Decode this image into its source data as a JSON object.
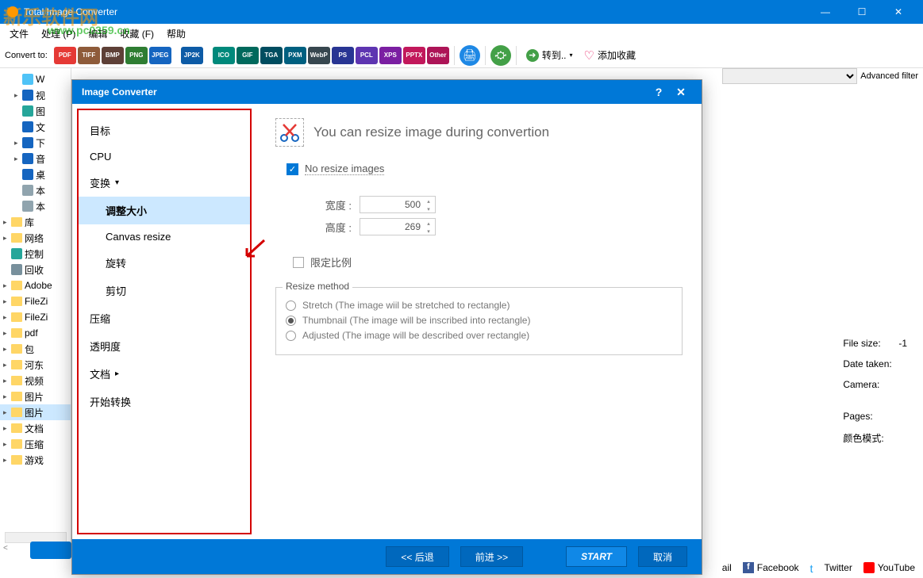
{
  "window": {
    "title": "Total Image Converter"
  },
  "menu": {
    "file": "文件",
    "process": "处理 (P)",
    "edit": "编辑",
    "favorites": "收藏 (F)",
    "help": "帮助"
  },
  "watermark": {
    "line1": "新乐软件网",
    "line2": "www.pc0359.cn"
  },
  "toolbar": {
    "convert_to": "Convert to:",
    "formats": [
      {
        "label": "PDF",
        "color": "#e53935"
      },
      {
        "label": "TIFF",
        "color": "#8e5b3a"
      },
      {
        "label": "BMP",
        "color": "#5e4037"
      },
      {
        "label": "PNG",
        "color": "#2e7d32"
      },
      {
        "label": "JPEG",
        "color": "#1565c0"
      },
      {
        "label": "JP2K",
        "color": "#0d5ba6"
      },
      {
        "label": "ICO",
        "color": "#00897b"
      },
      {
        "label": "GIF",
        "color": "#00695c"
      },
      {
        "label": "TGA",
        "color": "#004d60"
      },
      {
        "label": "PXM",
        "color": "#006080"
      },
      {
        "label": "WebP",
        "color": "#37474f"
      },
      {
        "label": "PS",
        "color": "#283593"
      },
      {
        "label": "PCL",
        "color": "#5e35b1"
      },
      {
        "label": "XPS",
        "color": "#7b1fa2"
      },
      {
        "label": "PPTX",
        "color": "#c2185b"
      },
      {
        "label": "Other",
        "color": "#ad1457"
      }
    ],
    "goto": "转到..",
    "add_fav": "添加收藏"
  },
  "filter": {
    "advanced": "Advanced filter"
  },
  "tree": [
    {
      "icon": "cloud",
      "label": "W",
      "indent": 1,
      "exp": ""
    },
    {
      "icon": "vid",
      "label": "视",
      "indent": 1,
      "exp": "▸"
    },
    {
      "icon": "img",
      "label": "图",
      "indent": 1,
      "exp": ""
    },
    {
      "icon": "doc",
      "label": "文",
      "indent": 1,
      "exp": ""
    },
    {
      "icon": "dl",
      "label": "下",
      "indent": 1,
      "exp": "▸"
    },
    {
      "icon": "mus",
      "label": "音",
      "indent": 1,
      "exp": "▸"
    },
    {
      "icon": "desk",
      "label": "桌",
      "indent": 1,
      "exp": ""
    },
    {
      "icon": "disk",
      "label": "本",
      "indent": 1,
      "exp": ""
    },
    {
      "icon": "disk",
      "label": "本",
      "indent": 1,
      "exp": ""
    },
    {
      "icon": "folder",
      "label": "库",
      "indent": 0,
      "exp": "▸"
    },
    {
      "icon": "folder",
      "label": "网络",
      "indent": 0,
      "exp": "▸"
    },
    {
      "icon": "ctrl",
      "label": "控制",
      "indent": 0,
      "exp": ""
    },
    {
      "icon": "bin",
      "label": "回收",
      "indent": 0,
      "exp": ""
    },
    {
      "icon": "folder",
      "label": "Adobe",
      "indent": 0,
      "exp": "▸"
    },
    {
      "icon": "folder",
      "label": "FileZi",
      "indent": 0,
      "exp": "▸"
    },
    {
      "icon": "folder",
      "label": "FileZi",
      "indent": 0,
      "exp": "▸"
    },
    {
      "icon": "folder",
      "label": "pdf",
      "indent": 0,
      "exp": "▸"
    },
    {
      "icon": "folder",
      "label": "包",
      "indent": 0,
      "exp": "▸"
    },
    {
      "icon": "folder",
      "label": "河东",
      "indent": 0,
      "exp": "▸"
    },
    {
      "icon": "folder",
      "label": "视频",
      "indent": 0,
      "exp": "▸"
    },
    {
      "icon": "folder",
      "label": "图片",
      "indent": 0,
      "exp": "▸"
    },
    {
      "icon": "folder",
      "label": "图片",
      "indent": 0,
      "exp": "▸",
      "sel": true
    },
    {
      "icon": "folder",
      "label": "文档",
      "indent": 0,
      "exp": "▸"
    },
    {
      "icon": "folder",
      "label": "压缩",
      "indent": 0,
      "exp": "▸"
    },
    {
      "icon": "folder",
      "label": "游戏",
      "indent": 0,
      "exp": "▸"
    }
  ],
  "info": {
    "filesize_label": "File size:",
    "filesize_value": "-1",
    "date_label": "Date taken:",
    "camera_label": "Camera:",
    "pages_label": "Pages:",
    "colormode_label": "颜色模式:"
  },
  "social": {
    "gmail": "ail",
    "facebook": "Facebook",
    "twitter": "Twitter",
    "youtube": "YouTube"
  },
  "dialog": {
    "title": "Image Converter",
    "nav": {
      "target": "目标",
      "cpu": "CPU",
      "transform": "变换",
      "resize": "调整大小",
      "canvas": "Canvas resize",
      "rotate": "旋转",
      "crop": "剪切",
      "compress": "压缩",
      "transparency": "透明度",
      "document": "文档",
      "start": "开始转换"
    },
    "config": {
      "title": "You can resize image during convertion",
      "no_resize": "No resize images",
      "width_label": "宽度 :",
      "width_value": "500",
      "height_label": "高度 :",
      "height_value": "269",
      "constrain": "限定比例",
      "method_legend": "Resize method",
      "stretch": "Stretch (The image wiil be stretched to rectangle)",
      "thumbnail": "Thumbnail  (The image will be inscribed into rectangle)",
      "adjusted": "Adjusted (The image will be described over rectangle)"
    },
    "footer": {
      "back": "<<  后退",
      "forward": "前进  >>",
      "start": "START",
      "cancel": "取消"
    }
  }
}
